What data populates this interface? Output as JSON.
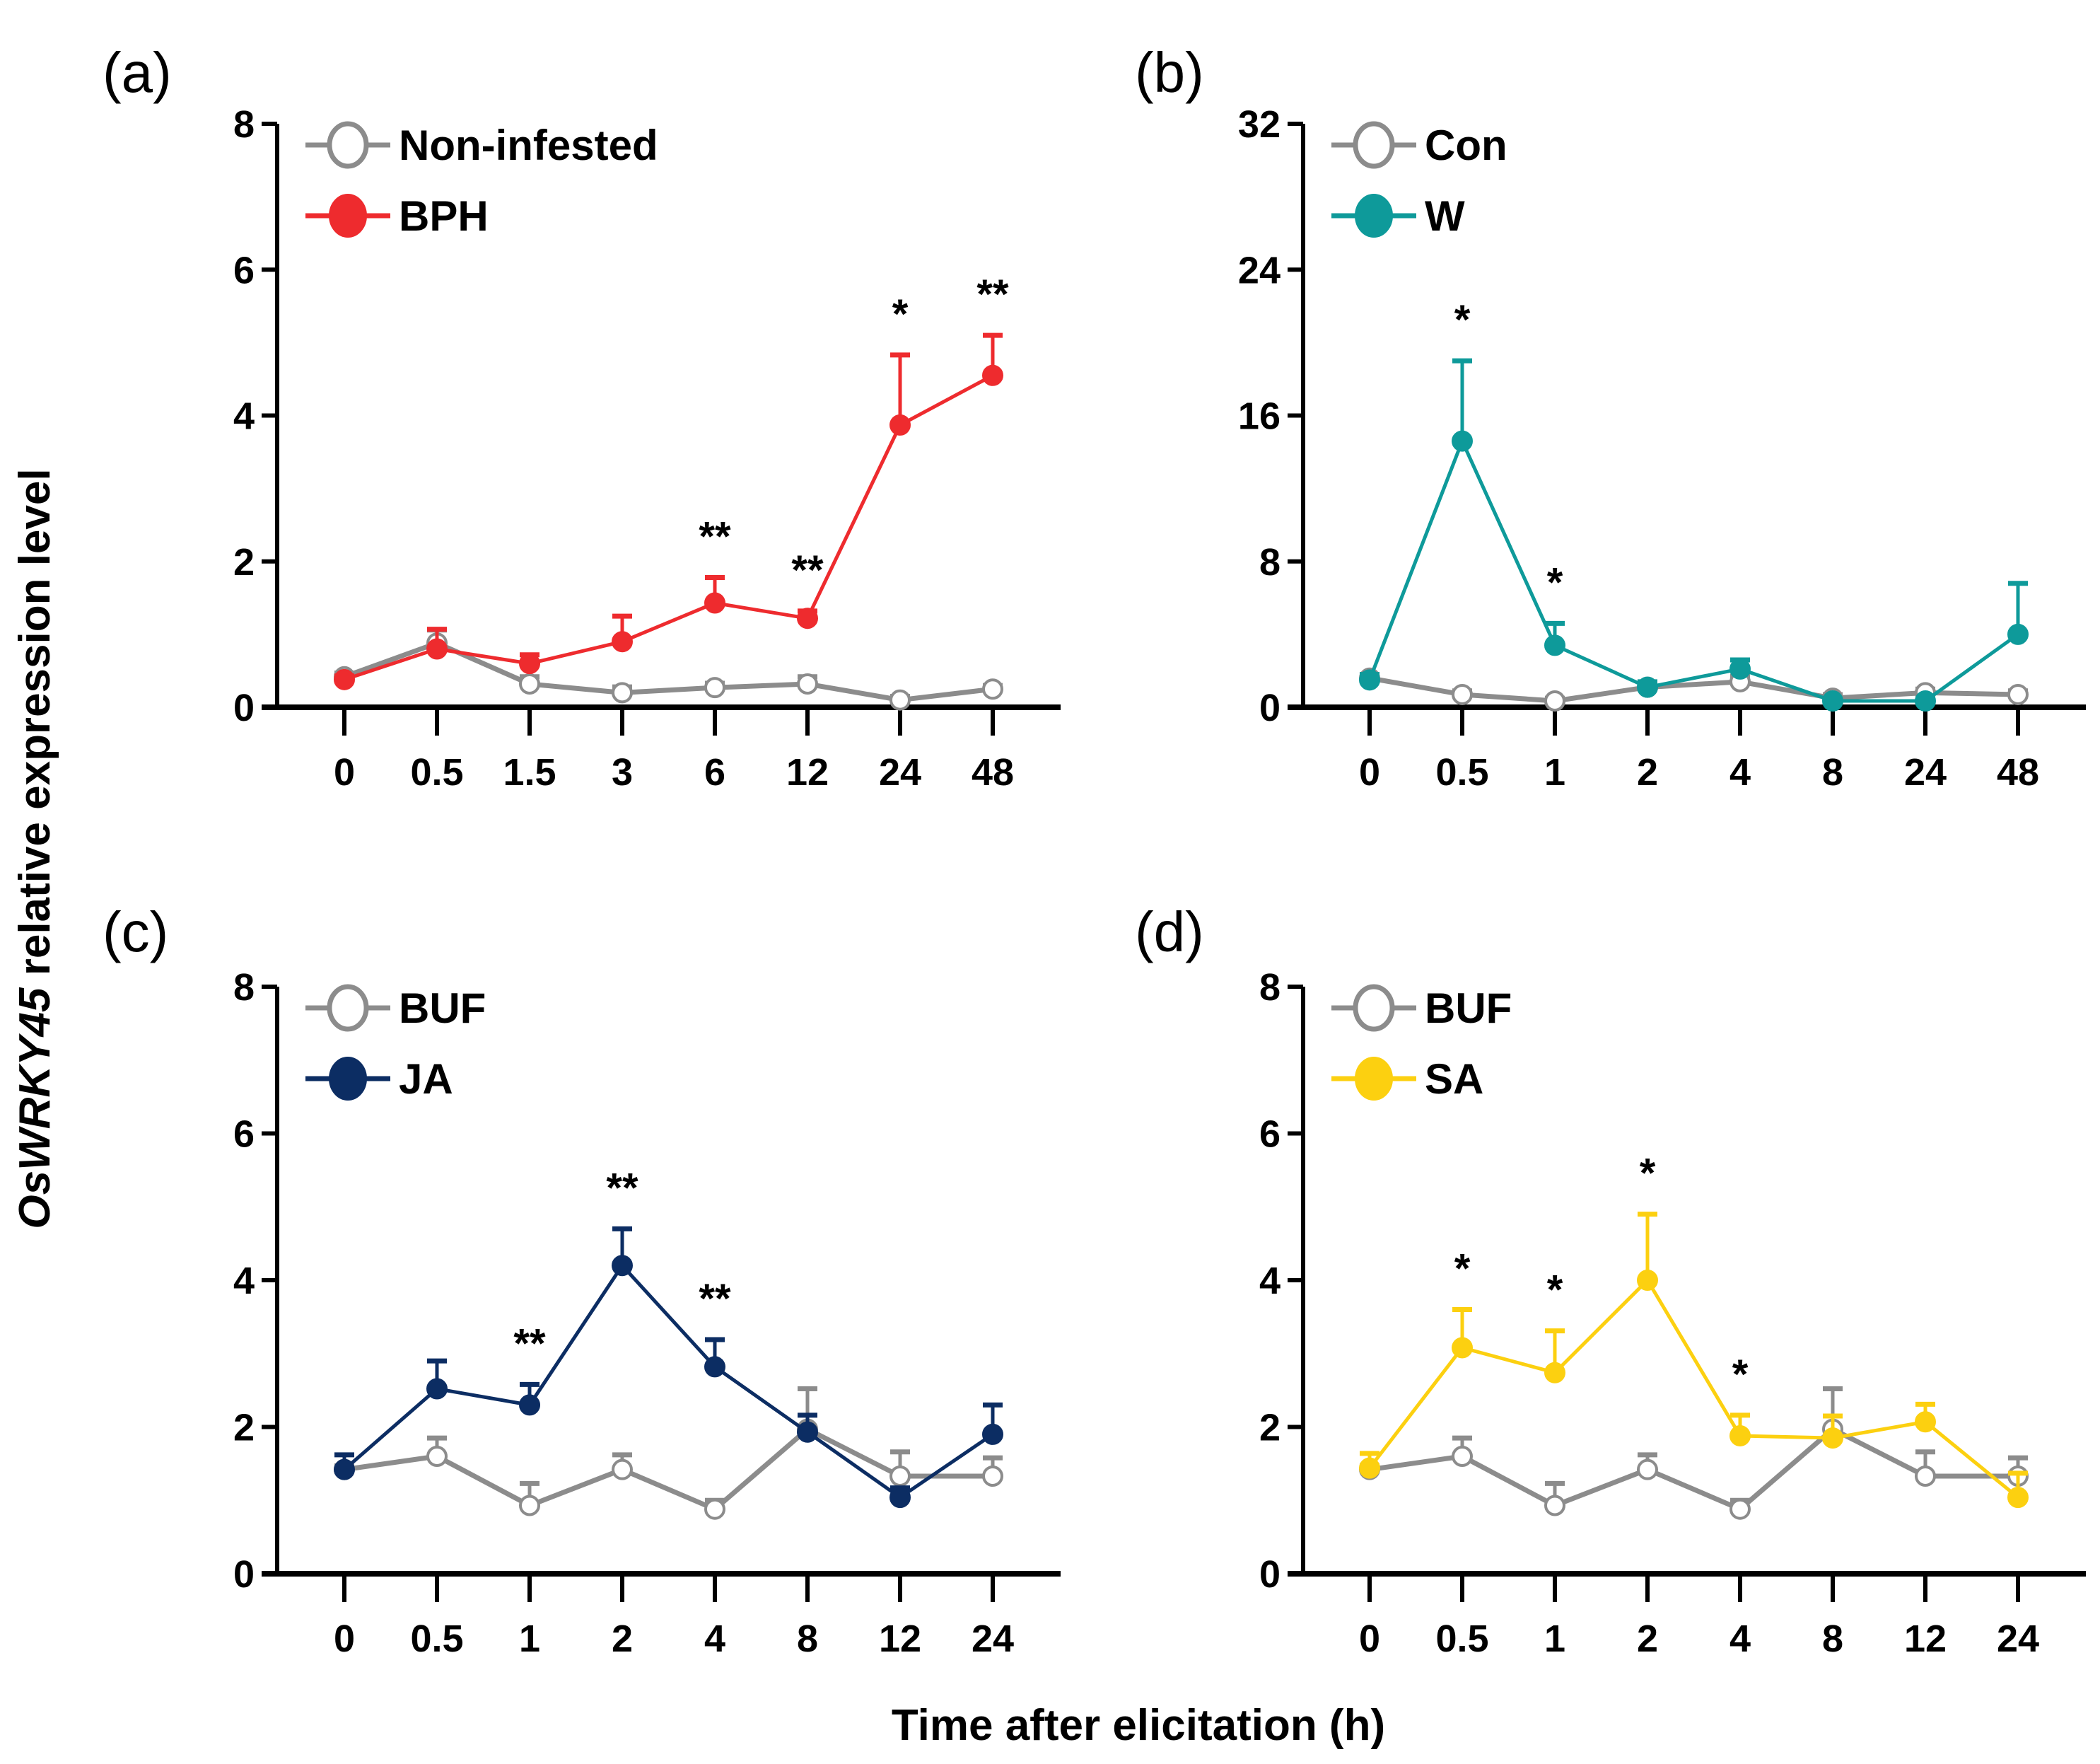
{
  "figure": {
    "ylabel_italic": "OsWRKY45",
    "ylabel_rest": " relative expression level",
    "xlabel": "Time after elicitation (h)"
  },
  "chart_data": [
    {
      "type": "line",
      "panel": "(a)",
      "categories": [
        "0",
        "0.5",
        "1.5",
        "3",
        "6",
        "12",
        "24",
        "48"
      ],
      "yticks": [
        0,
        2,
        4,
        6,
        8
      ],
      "ylim": [
        0,
        8
      ],
      "legend_position": "top-left",
      "series": [
        {
          "name": "Non-infested",
          "color": "#8c8c8c",
          "filled": false,
          "values": [
            0.42,
            0.88,
            0.32,
            0.2,
            0.27,
            0.32,
            0.1,
            0.25
          ],
          "errors": [
            0.05,
            0.18,
            0.1,
            0.08,
            0.06,
            0.1,
            0.05,
            0.05
          ]
        },
        {
          "name": "BPH",
          "color": "#ee2b2e",
          "filled": true,
          "values": [
            0.38,
            0.8,
            0.6,
            0.9,
            1.43,
            1.22,
            3.87,
            4.55
          ],
          "errors": [
            0.05,
            0.27,
            0.12,
            0.35,
            0.35,
            0.1,
            0.96,
            0.55
          ]
        }
      ],
      "annotations": [
        {
          "x": "6",
          "text": "**"
        },
        {
          "x": "12",
          "text": "**"
        },
        {
          "x": "24",
          "text": "*"
        },
        {
          "x": "48",
          "text": "**"
        }
      ]
    },
    {
      "type": "line",
      "panel": "(b)",
      "categories": [
        "0",
        "0.5",
        "1",
        "2",
        "4",
        "8",
        "24",
        "48"
      ],
      "yticks": [
        0,
        8,
        16,
        24,
        32
      ],
      "ylim": [
        0,
        32
      ],
      "legend_position": "top-left",
      "series": [
        {
          "name": "Con",
          "color": "#8c8c8c",
          "filled": false,
          "values": [
            1.6,
            0.7,
            0.35,
            1.1,
            1.4,
            0.5,
            0.8,
            0.7
          ],
          "errors": [
            0.2,
            0.2,
            0.15,
            0.2,
            0.3,
            0.2,
            0.2,
            0.2
          ]
        },
        {
          "name": "W",
          "color": "#0e9a9a",
          "filled": true,
          "values": [
            1.5,
            14.6,
            3.4,
            1.1,
            2.1,
            0.35,
            0.35,
            4.0
          ],
          "errors": [
            0.3,
            4.4,
            1.2,
            0.3,
            0.5,
            0.1,
            0.1,
            2.8
          ]
        }
      ],
      "annotations": [
        {
          "x": "0.5",
          "text": "*"
        },
        {
          "x": "1",
          "text": "*"
        }
      ]
    },
    {
      "type": "line",
      "panel": "(c)",
      "categories": [
        "0",
        "0.5",
        "1",
        "2",
        "4",
        "8",
        "12",
        "24"
      ],
      "yticks": [
        0,
        2,
        4,
        6,
        8
      ],
      "ylim": [
        0,
        8
      ],
      "legend_position": "top-left",
      "series": [
        {
          "name": "BUF",
          "color": "#8c8c8c",
          "filled": false,
          "values": [
            1.42,
            1.6,
            0.93,
            1.42,
            0.88,
            1.97,
            1.33,
            1.33
          ],
          "errors": [
            0.05,
            0.25,
            0.3,
            0.2,
            0.12,
            0.55,
            0.33,
            0.25
          ]
        },
        {
          "name": "JA",
          "color": "#0c2d63",
          "filled": true,
          "values": [
            1.42,
            2.52,
            2.3,
            4.2,
            2.82,
            1.93,
            1.04,
            1.9
          ],
          "errors": [
            0.2,
            0.38,
            0.28,
            0.5,
            0.37,
            0.23,
            0.13,
            0.4
          ]
        }
      ],
      "annotations": [
        {
          "x": "1",
          "text": "**"
        },
        {
          "x": "2",
          "text": "**"
        },
        {
          "x": "4",
          "text": "**"
        }
      ]
    },
    {
      "type": "line",
      "panel": "(d)",
      "categories": [
        "0",
        "0.5",
        "1",
        "2",
        "4",
        "8",
        "12",
        "24"
      ],
      "yticks": [
        0,
        2,
        4,
        6,
        8
      ],
      "ylim": [
        0,
        8
      ],
      "legend_position": "top-left",
      "series": [
        {
          "name": "BUF",
          "color": "#8c8c8c",
          "filled": false,
          "values": [
            1.42,
            1.6,
            0.93,
            1.42,
            0.88,
            1.97,
            1.33,
            1.33
          ],
          "errors": [
            0.05,
            0.25,
            0.3,
            0.2,
            0.12,
            0.55,
            0.33,
            0.25
          ]
        },
        {
          "name": "SA",
          "color": "#fcd010",
          "filled": true,
          "values": [
            1.44,
            3.08,
            2.74,
            4.0,
            1.88,
            1.85,
            2.07,
            1.04
          ],
          "errors": [
            0.2,
            0.52,
            0.57,
            0.9,
            0.28,
            0.3,
            0.24,
            0.33
          ]
        }
      ],
      "annotations": [
        {
          "x": "0.5",
          "text": "*"
        },
        {
          "x": "1",
          "text": "*"
        },
        {
          "x": "2",
          "text": "*"
        },
        {
          "x": "4",
          "text": "*"
        }
      ]
    }
  ]
}
